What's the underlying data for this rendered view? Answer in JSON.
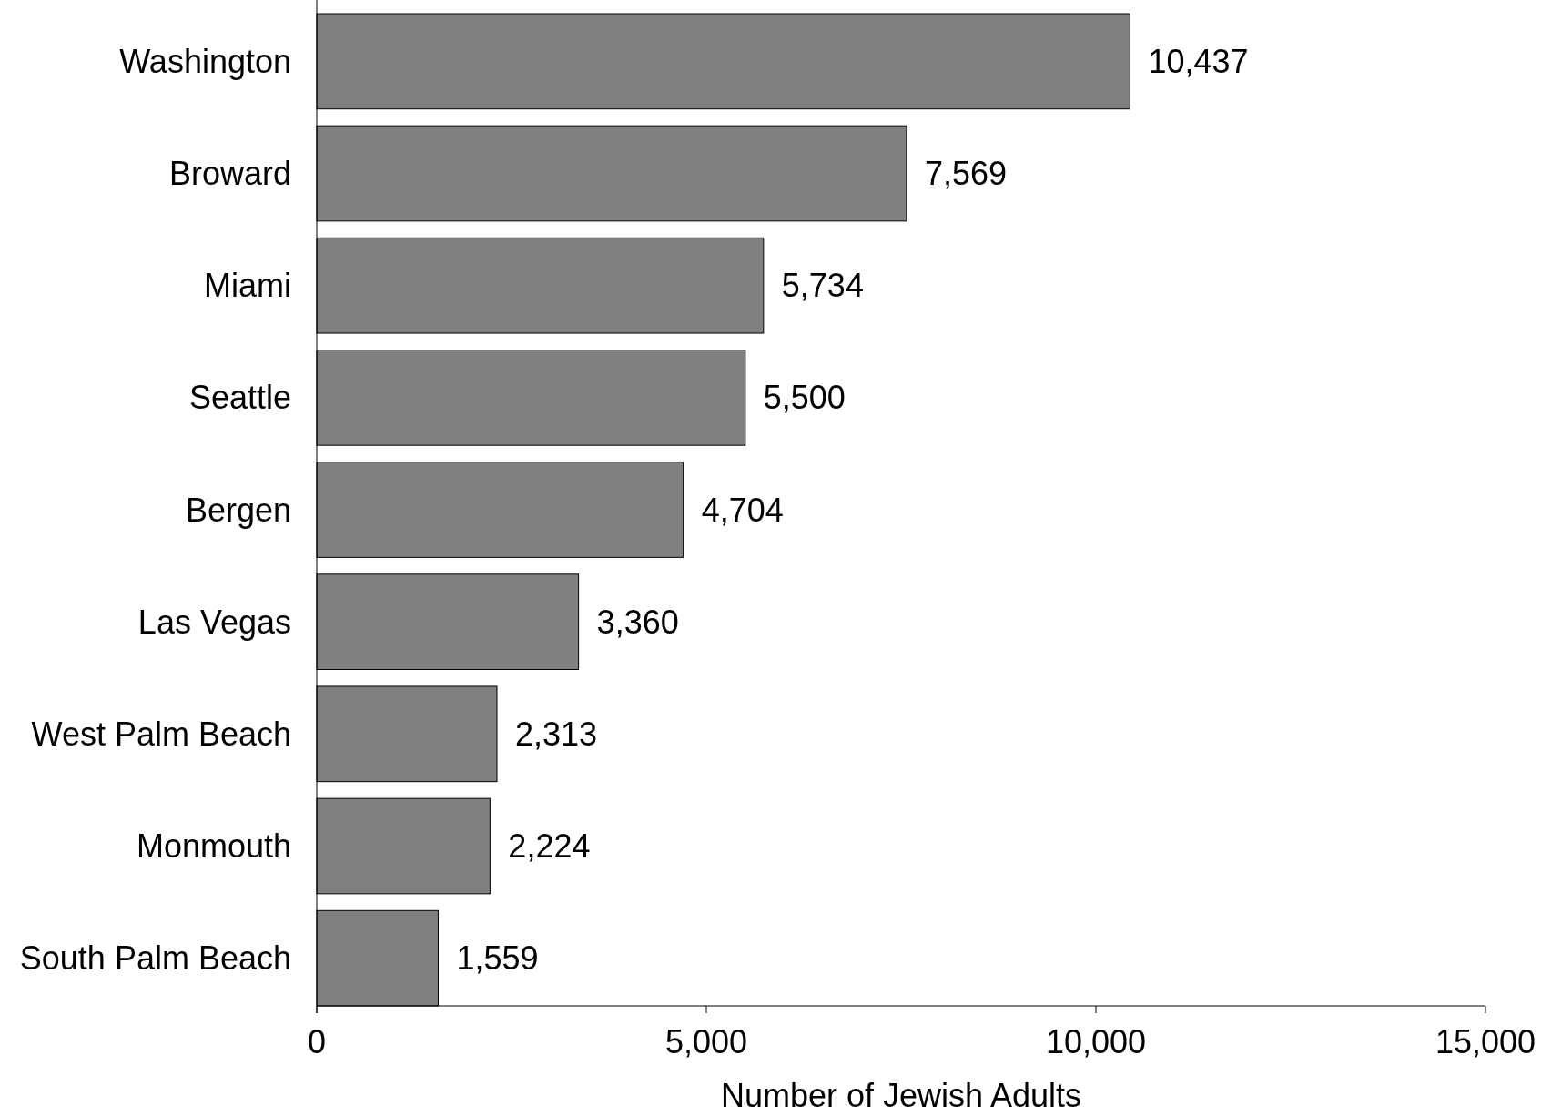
{
  "chart_data": {
    "type": "bar",
    "orientation": "horizontal",
    "xlabel": "Number of Jewish Adults",
    "categories": [
      "Washington",
      "Broward",
      "Miami",
      "Seattle",
      "Bergen",
      "Las Vegas",
      "West Palm Beach",
      "Monmouth",
      "South Palm Beach"
    ],
    "values": [
      10437,
      7569,
      5734,
      5500,
      4704,
      3360,
      2313,
      2224,
      1559
    ],
    "color": "#808080",
    "xlim": [
      0,
      15000
    ],
    "xticks": [
      0,
      {
        "value": 5000,
        "label": "5,000"
      },
      {
        "value": 10000,
        "label": "10,000"
      },
      {
        "value": 15000,
        "label": "15,000"
      }
    ],
    "value_labels": [
      "10,437",
      "7,569",
      "5,734",
      "5,500",
      "4,704",
      "3,360",
      "2,313",
      "2,224",
      "1,559"
    ],
    "grid": false
  }
}
